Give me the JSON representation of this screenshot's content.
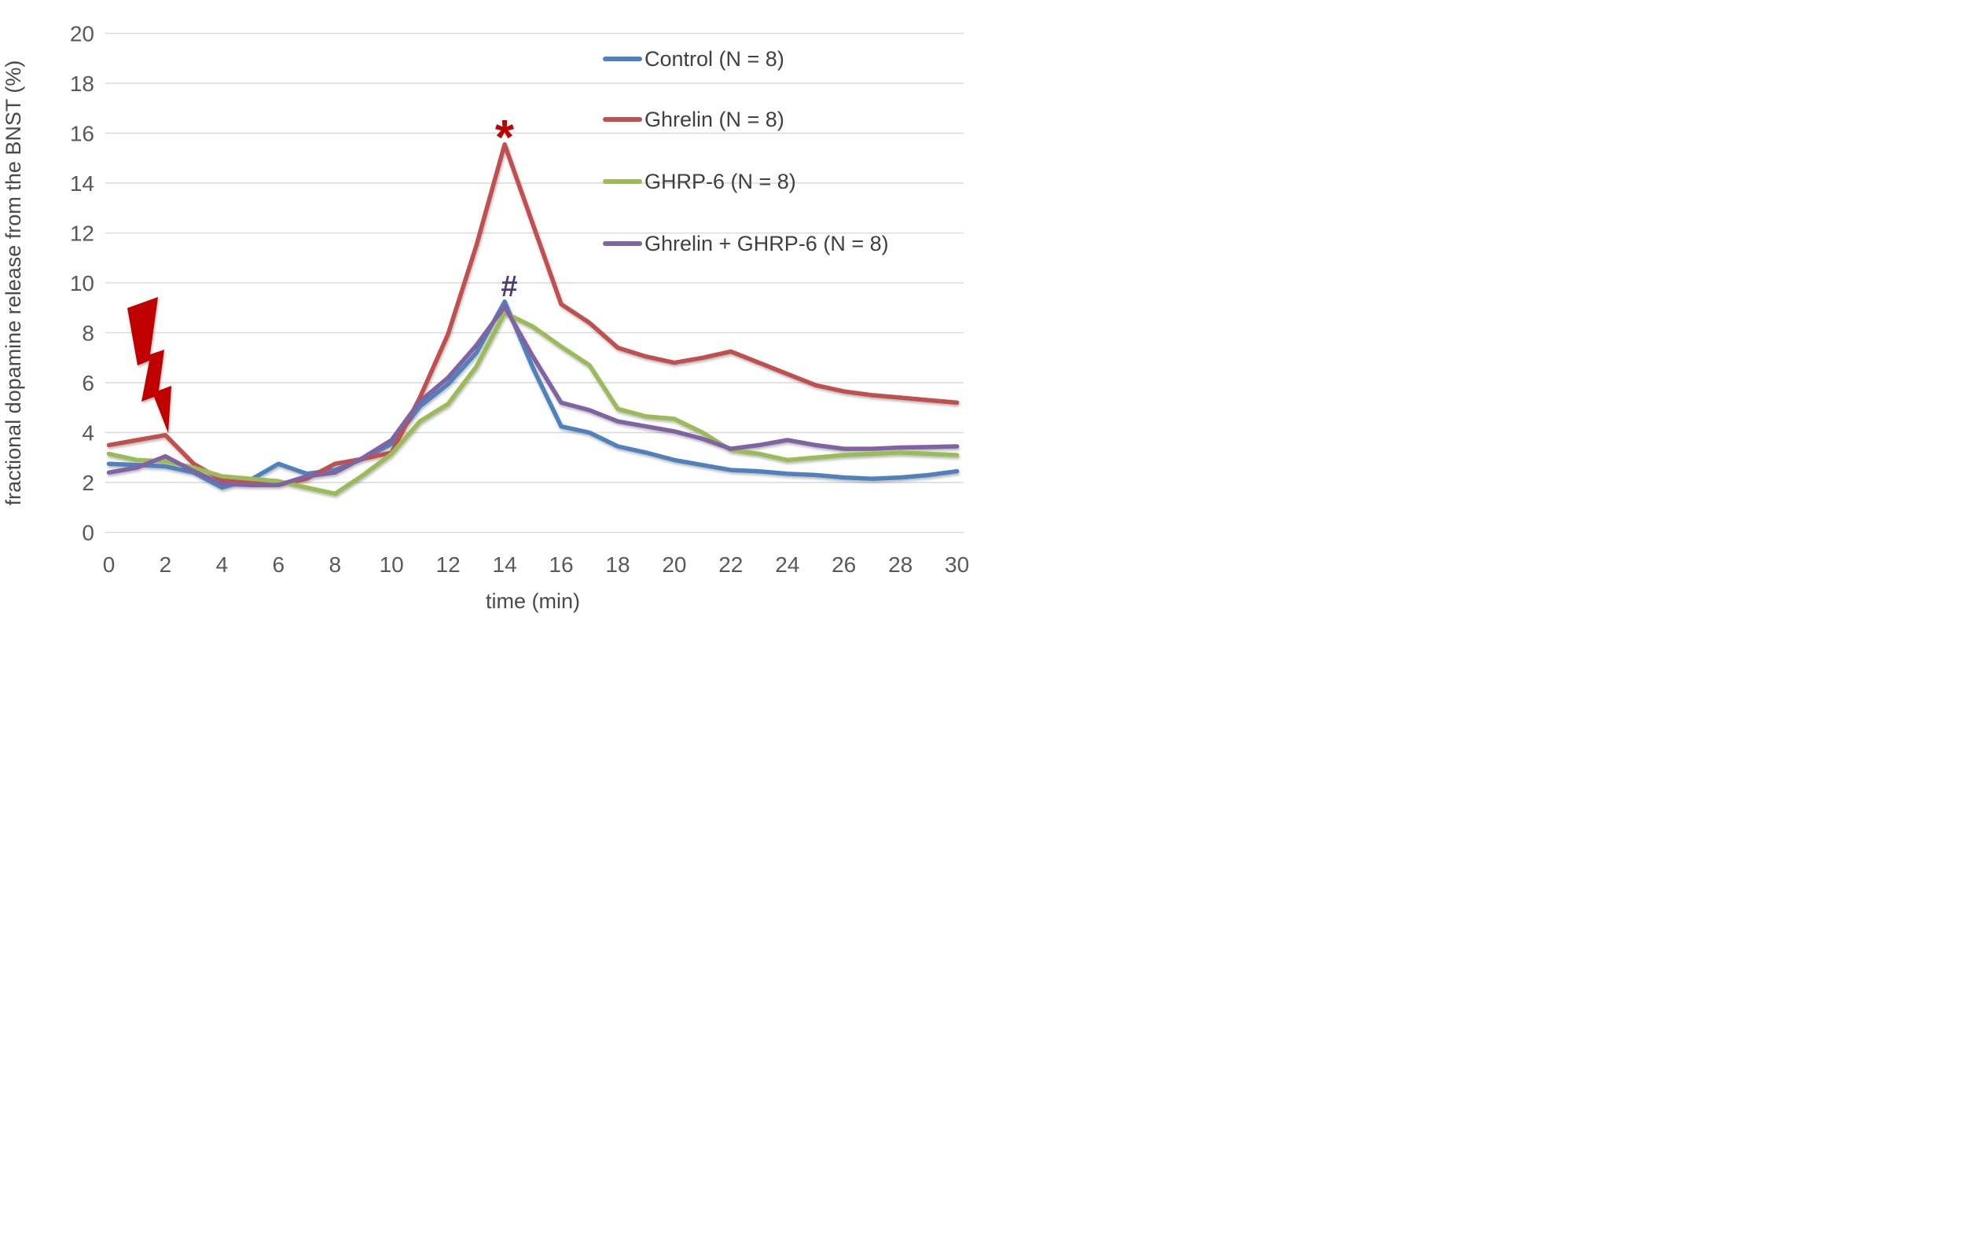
{
  "chart_data": {
    "type": "line",
    "x": [
      0,
      1,
      2,
      3,
      4,
      5,
      6,
      7,
      8,
      9,
      10,
      11,
      12,
      13,
      14,
      15,
      16,
      17,
      18,
      19,
      20,
      21,
      22,
      23,
      24,
      25,
      26,
      27,
      28,
      29,
      30
    ],
    "x_tick_labels": [
      "0",
      "2",
      "4",
      "6",
      "8",
      "10",
      "12",
      "14",
      "16",
      "18",
      "20",
      "22",
      "24",
      "26",
      "28",
      "30"
    ],
    "y_tick_labels": [
      "0",
      "2",
      "4",
      "6",
      "8",
      "10",
      "12",
      "14",
      "16",
      "18",
      "20"
    ],
    "xlabel": "time (min)",
    "ylabel": "fractional dopamine release from the BNST (%)",
    "xlim": [
      0,
      30
    ],
    "ylim": [
      0,
      20
    ],
    "grid": "horizontal",
    "legend_position": "top-right",
    "background_color": "#ffffff",
    "gridline_color": "#d9d9d9",
    "tick_color": "#595959",
    "series": [
      {
        "name": "Control (N = 8)",
        "color": "#4F81BD",
        "values": [
          2.75,
          2.7,
          2.65,
          2.4,
          1.8,
          2.1,
          2.75,
          2.35,
          2.5,
          2.95,
          3.55,
          5.05,
          5.95,
          7.2,
          9.25,
          6.6,
          4.25,
          4.0,
          3.45,
          3.2,
          2.9,
          2.7,
          2.5,
          2.45,
          2.35,
          2.3,
          2.2,
          2.15,
          2.2,
          2.3,
          2.45
        ]
      },
      {
        "name": "Ghrelin (N = 8)",
        "color": "#C0504D",
        "values": [
          3.5,
          3.7,
          3.9,
          2.75,
          2.1,
          2.0,
          1.9,
          2.15,
          2.75,
          2.95,
          3.2,
          5.4,
          7.95,
          11.5,
          15.55,
          12.35,
          9.15,
          8.4,
          7.4,
          7.05,
          6.8,
          7.0,
          7.25,
          6.8,
          6.35,
          5.9,
          5.65,
          5.5,
          5.4,
          5.3,
          5.2
        ]
      },
      {
        "name": "GHRP-6 (N = 8)",
        "color": "#9BBB59",
        "values": [
          3.15,
          2.9,
          2.85,
          2.6,
          2.25,
          2.15,
          2.05,
          1.8,
          1.55,
          2.3,
          3.15,
          4.45,
          5.15,
          6.65,
          8.8,
          8.25,
          7.45,
          6.7,
          4.95,
          4.65,
          4.55,
          4.0,
          3.3,
          3.15,
          2.9,
          3.0,
          3.1,
          3.15,
          3.2,
          3.15,
          3.1
        ]
      },
      {
        "name": "Ghrelin + GHRP-6 (N = 8)",
        "color": "#8064A2",
        "values": [
          2.4,
          2.6,
          3.05,
          2.45,
          1.95,
          1.9,
          1.9,
          2.25,
          2.4,
          3.0,
          3.7,
          5.25,
          6.2,
          7.5,
          9.05,
          7.05,
          5.2,
          4.9,
          4.45,
          4.25,
          4.05,
          3.75,
          3.35,
          3.5,
          3.7,
          3.5,
          3.35,
          3.35,
          3.4,
          3.42,
          3.45
        ]
      }
    ],
    "annotations": {
      "asterisk": {
        "symbol": "*",
        "color": "#C00000",
        "x": 14,
        "y": 16.4,
        "meaning": "significance marker above Ghrelin peak"
      },
      "hash": {
        "symbol": "#",
        "color": "#4A3C77",
        "x": 14.1,
        "y": 9.9,
        "meaning": "significance marker above Ghrelin + GHRP-6 peak"
      },
      "lightning_bolt": {
        "color": "#C00000",
        "tip_x": 2,
        "tip_y": 4.0,
        "meaning": "stimulus marker pointing at t = 2 min"
      }
    }
  }
}
